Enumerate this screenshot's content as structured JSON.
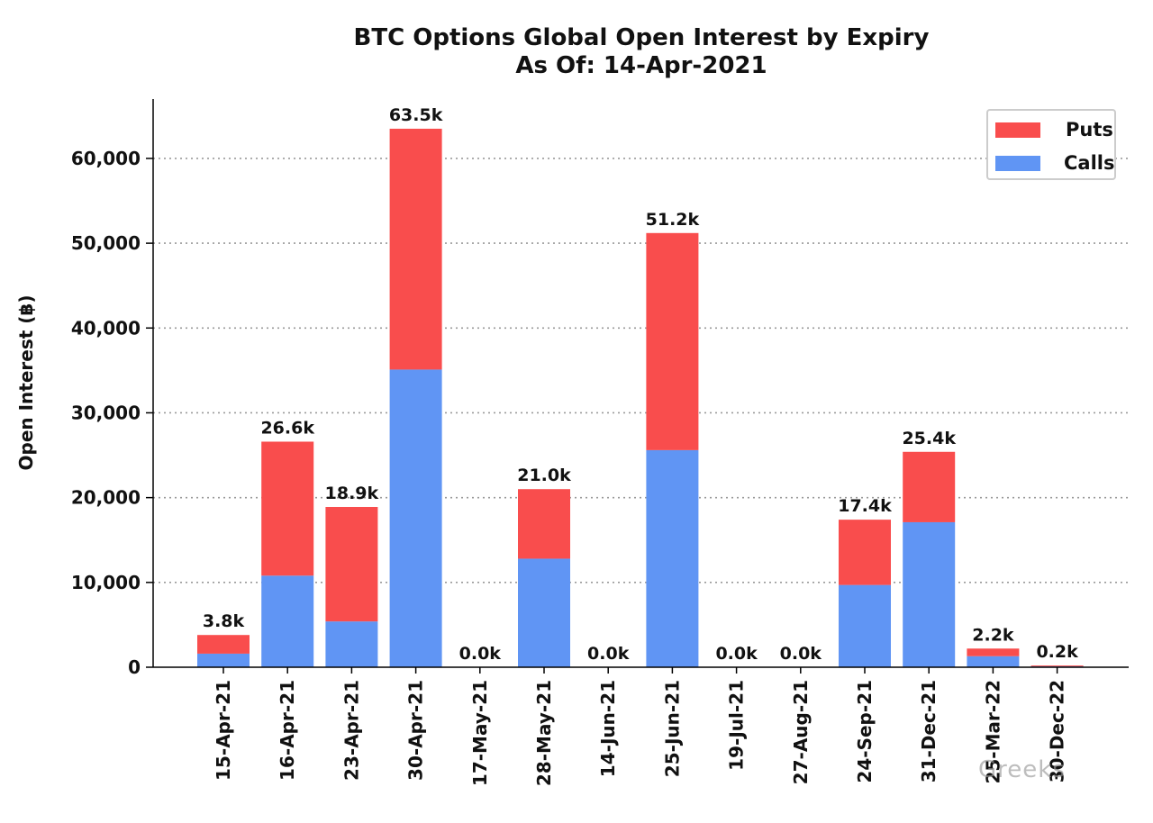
{
  "watermark": "Greeks",
  "colors": {
    "puts": "#f94d4d",
    "calls": "#6095f4",
    "grid": "#9a9a9a",
    "axis": "#000000"
  },
  "chart_data": {
    "type": "bar",
    "stacked": true,
    "title": "BTC Options Global Open Interest by Expiry",
    "subtitle": "As Of: 14-Apr-2021",
    "xlabel": "",
    "ylabel": "Open Interest (฿)",
    "ylim": [
      0,
      67000
    ],
    "yticks": [
      0,
      10000,
      20000,
      30000,
      40000,
      50000,
      60000
    ],
    "ytick_labels": [
      "0",
      "10,000",
      "20,000",
      "30,000",
      "40,000",
      "50,000",
      "60,000"
    ],
    "grid": "horizontal dotted",
    "legend_position": "top-right",
    "categories": [
      "15-Apr-21",
      "16-Apr-21",
      "23-Apr-21",
      "30-Apr-21",
      "17-May-21",
      "28-May-21",
      "14-Jun-21",
      "25-Jun-21",
      "19-Jul-21",
      "27-Aug-21",
      "24-Sep-21",
      "31-Dec-21",
      "25-Mar-22",
      "30-Dec-22"
    ],
    "series": [
      {
        "name": "Calls",
        "color": "#6095f4",
        "values": [
          1600,
          10800,
          5400,
          35100,
          0,
          12800,
          0,
          25600,
          0,
          0,
          9700,
          17100,
          1300,
          100
        ]
      },
      {
        "name": "Puts",
        "color": "#f94d4d",
        "values": [
          2200,
          15800,
          13500,
          28400,
          0,
          8200,
          0,
          25600,
          0,
          0,
          7700,
          8300,
          900,
          100
        ]
      }
    ],
    "totals_labels": [
      "3.8k",
      "26.6k",
      "18.9k",
      "63.5k",
      "0.0k",
      "21.0k",
      "0.0k",
      "51.2k",
      "0.0k",
      "0.0k",
      "17.4k",
      "25.4k",
      "2.2k",
      "0.2k"
    ]
  }
}
